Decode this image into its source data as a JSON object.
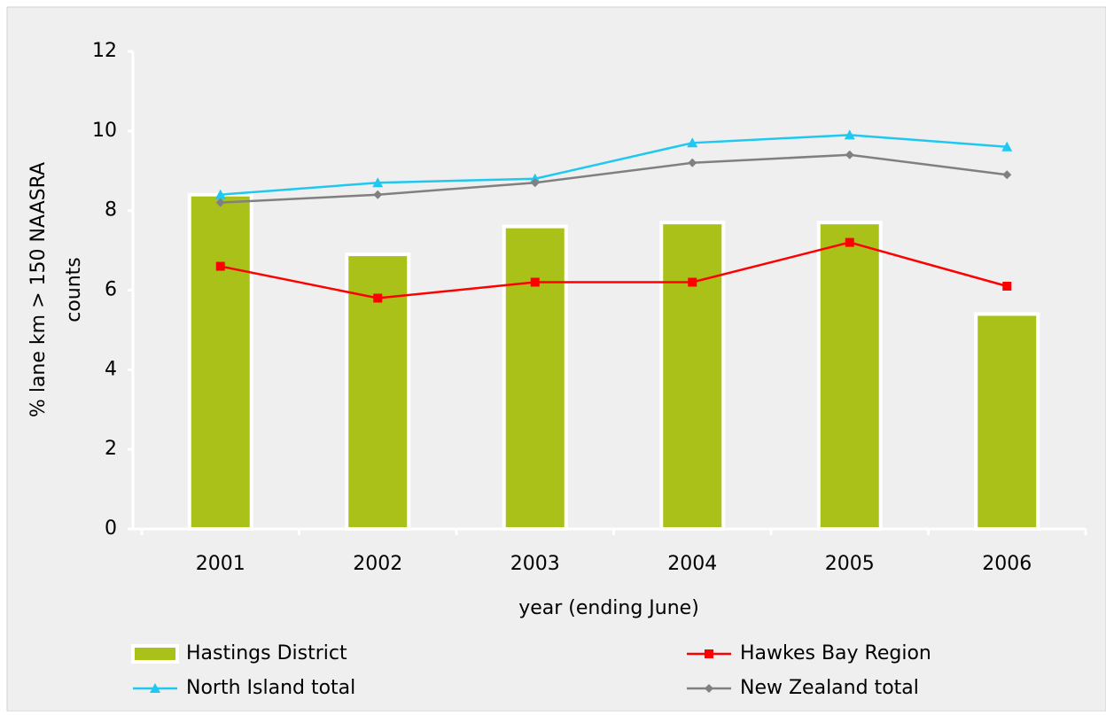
{
  "chart_data": {
    "type": "bar",
    "x_label": "year (ending June)",
    "y_label": [
      "% lane km > 150 NAASRA",
      "counts"
    ],
    "categories": [
      "2001",
      "2002",
      "2003",
      "2004",
      "2005",
      "2006"
    ],
    "ylim": [
      0,
      12
    ],
    "yticks": [
      0,
      2,
      4,
      6,
      8,
      10,
      12
    ],
    "grid": false,
    "legend": "bottom",
    "series": [
      {
        "name": "Hastings District",
        "type": "bar",
        "color": "#aac11a",
        "values": [
          8.4,
          6.9,
          7.6,
          7.7,
          7.7,
          5.4
        ]
      },
      {
        "name": "Hawkes Bay Region",
        "type": "line",
        "marker": "square",
        "color": "#ff0000",
        "values": [
          6.6,
          5.8,
          6.2,
          6.2,
          7.2,
          6.1
        ]
      },
      {
        "name": "North Island total",
        "type": "line",
        "marker": "triangle",
        "color": "#1ec8f0",
        "values": [
          8.4,
          8.7,
          8.8,
          9.7,
          9.9,
          9.6
        ]
      },
      {
        "name": "New Zealand total",
        "type": "line",
        "marker": "diamond",
        "color": "#808080",
        "values": [
          8.2,
          8.4,
          8.7,
          9.2,
          9.4,
          8.9
        ]
      }
    ]
  }
}
